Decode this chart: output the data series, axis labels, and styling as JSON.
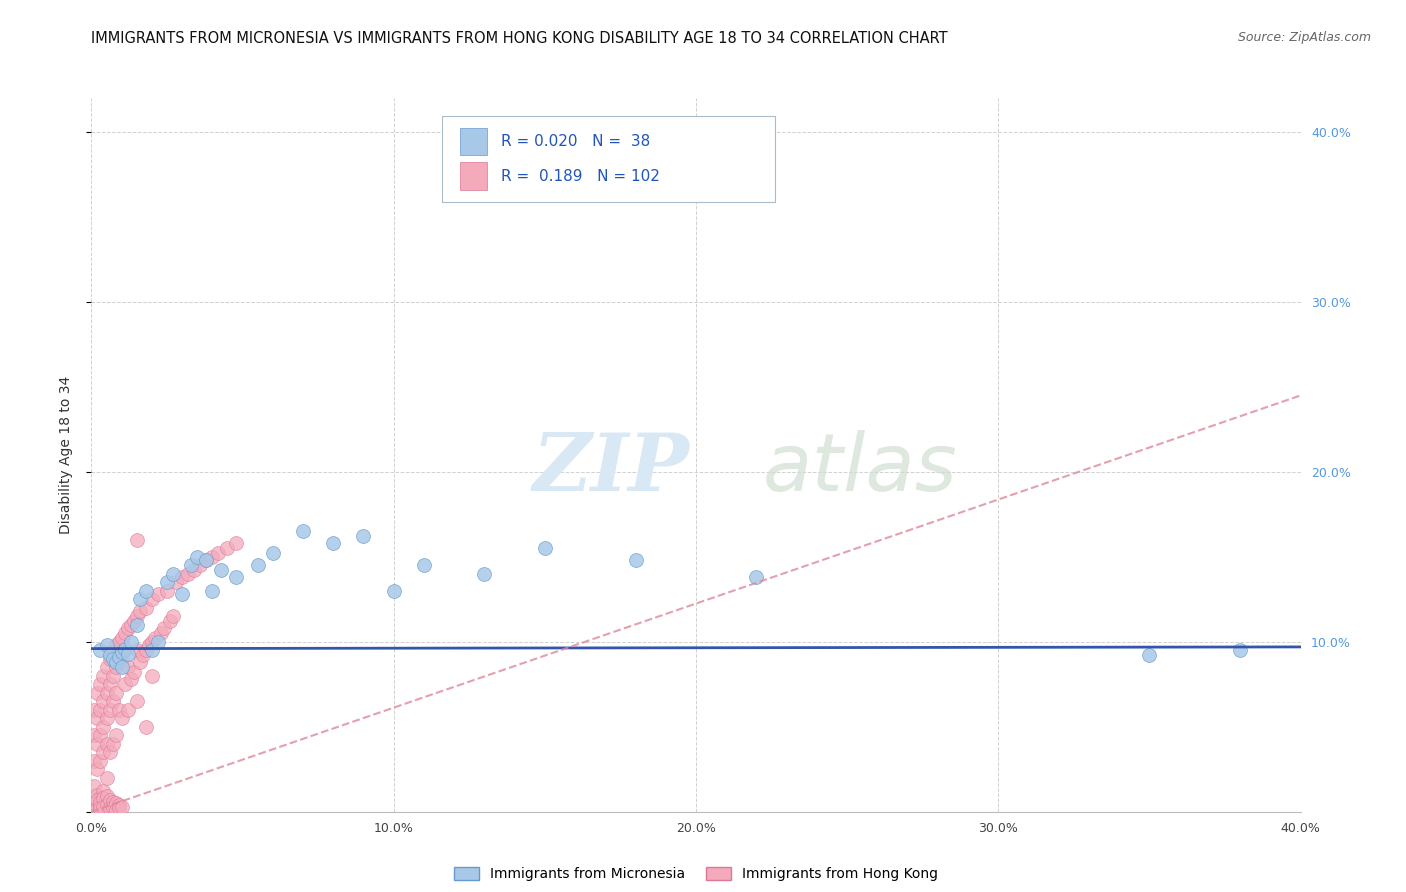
{
  "title": "IMMIGRANTS FROM MICRONESIA VS IMMIGRANTS FROM HONG KONG DISABILITY AGE 18 TO 34 CORRELATION CHART",
  "source": "Source: ZipAtlas.com",
  "ylabel": "Disability Age 18 to 34",
  "xlim": [
    0.0,
    0.4
  ],
  "ylim": [
    0.0,
    0.42
  ],
  "micronesia_color": "#A8C8E8",
  "micronesia_edge": "#6699CC",
  "hongkong_color": "#F4AABB",
  "hongkong_edge": "#DD7799",
  "R_micronesia": 0.02,
  "N_micronesia": 38,
  "R_hongkong": 0.189,
  "N_hongkong": 102,
  "trend_micronesia_color": "#3355AA",
  "trend_hongkong_color": "#DD8899",
  "watermark_ZIP": "ZIP",
  "watermark_atlas": "atlas",
  "legend_label_micronesia": "Immigrants from Micronesia",
  "legend_label_hongkong": "Immigrants from Hong Kong",
  "micronesia_x": [
    0.003,
    0.005,
    0.006,
    0.007,
    0.008,
    0.009,
    0.01,
    0.01,
    0.011,
    0.012,
    0.013,
    0.015,
    0.016,
    0.018,
    0.02,
    0.022,
    0.025,
    0.027,
    0.03,
    0.033,
    0.035,
    0.038,
    0.04,
    0.043,
    0.048,
    0.055,
    0.06,
    0.07,
    0.08,
    0.09,
    0.1,
    0.11,
    0.13,
    0.15,
    0.18,
    0.22,
    0.35,
    0.38
  ],
  "micronesia_y": [
    0.095,
    0.098,
    0.092,
    0.09,
    0.088,
    0.091,
    0.094,
    0.085,
    0.096,
    0.093,
    0.1,
    0.11,
    0.125,
    0.13,
    0.095,
    0.1,
    0.135,
    0.14,
    0.128,
    0.145,
    0.15,
    0.148,
    0.13,
    0.142,
    0.138,
    0.145,
    0.152,
    0.165,
    0.158,
    0.162,
    0.13,
    0.145,
    0.14,
    0.155,
    0.148,
    0.138,
    0.092,
    0.095
  ],
  "hongkong_x": [
    0.001,
    0.001,
    0.001,
    0.001,
    0.002,
    0.002,
    0.002,
    0.002,
    0.002,
    0.003,
    0.003,
    0.003,
    0.003,
    0.003,
    0.004,
    0.004,
    0.004,
    0.004,
    0.004,
    0.005,
    0.005,
    0.005,
    0.005,
    0.005,
    0.005,
    0.006,
    0.006,
    0.006,
    0.006,
    0.007,
    0.007,
    0.007,
    0.007,
    0.008,
    0.008,
    0.008,
    0.008,
    0.009,
    0.009,
    0.009,
    0.01,
    0.01,
    0.01,
    0.011,
    0.011,
    0.012,
    0.012,
    0.012,
    0.013,
    0.013,
    0.014,
    0.014,
    0.015,
    0.015,
    0.015,
    0.016,
    0.016,
    0.017,
    0.018,
    0.018,
    0.019,
    0.02,
    0.02,
    0.021,
    0.022,
    0.023,
    0.024,
    0.025,
    0.026,
    0.027,
    0.028,
    0.03,
    0.032,
    0.034,
    0.036,
    0.038,
    0.04,
    0.042,
    0.045,
    0.048,
    0.001,
    0.002,
    0.002,
    0.003,
    0.003,
    0.003,
    0.004,
    0.004,
    0.005,
    0.005,
    0.006,
    0.006,
    0.007,
    0.007,
    0.008,
    0.008,
    0.009,
    0.009,
    0.01,
    0.015,
    0.018,
    0.02
  ],
  "hongkong_y": [
    0.06,
    0.045,
    0.03,
    0.015,
    0.07,
    0.055,
    0.04,
    0.025,
    0.01,
    0.075,
    0.06,
    0.045,
    0.03,
    0.008,
    0.08,
    0.065,
    0.05,
    0.035,
    0.012,
    0.085,
    0.07,
    0.055,
    0.04,
    0.02,
    0.005,
    0.09,
    0.075,
    0.06,
    0.035,
    0.095,
    0.08,
    0.065,
    0.04,
    0.098,
    0.085,
    0.07,
    0.045,
    0.1,
    0.088,
    0.06,
    0.102,
    0.09,
    0.055,
    0.105,
    0.075,
    0.108,
    0.085,
    0.06,
    0.11,
    0.078,
    0.112,
    0.082,
    0.115,
    0.095,
    0.065,
    0.118,
    0.088,
    0.092,
    0.12,
    0.095,
    0.098,
    0.125,
    0.1,
    0.102,
    0.128,
    0.105,
    0.108,
    0.13,
    0.112,
    0.115,
    0.135,
    0.138,
    0.14,
    0.142,
    0.145,
    0.148,
    0.15,
    0.152,
    0.155,
    0.158,
    0.005,
    0.003,
    0.007,
    0.004,
    0.006,
    0.002,
    0.008,
    0.003,
    0.009,
    0.004,
    0.007,
    0.002,
    0.006,
    0.003,
    0.005,
    0.001,
    0.004,
    0.002,
    0.003,
    0.16,
    0.05,
    0.08
  ],
  "hk_trend_x0": 0.0,
  "hk_trend_x1": 0.4,
  "hk_trend_y0": 0.0,
  "hk_trend_y1": 0.245,
  "mic_trend_x0": 0.0,
  "mic_trend_x1": 0.4,
  "mic_trend_y0": 0.096,
  "mic_trend_y1": 0.097
}
